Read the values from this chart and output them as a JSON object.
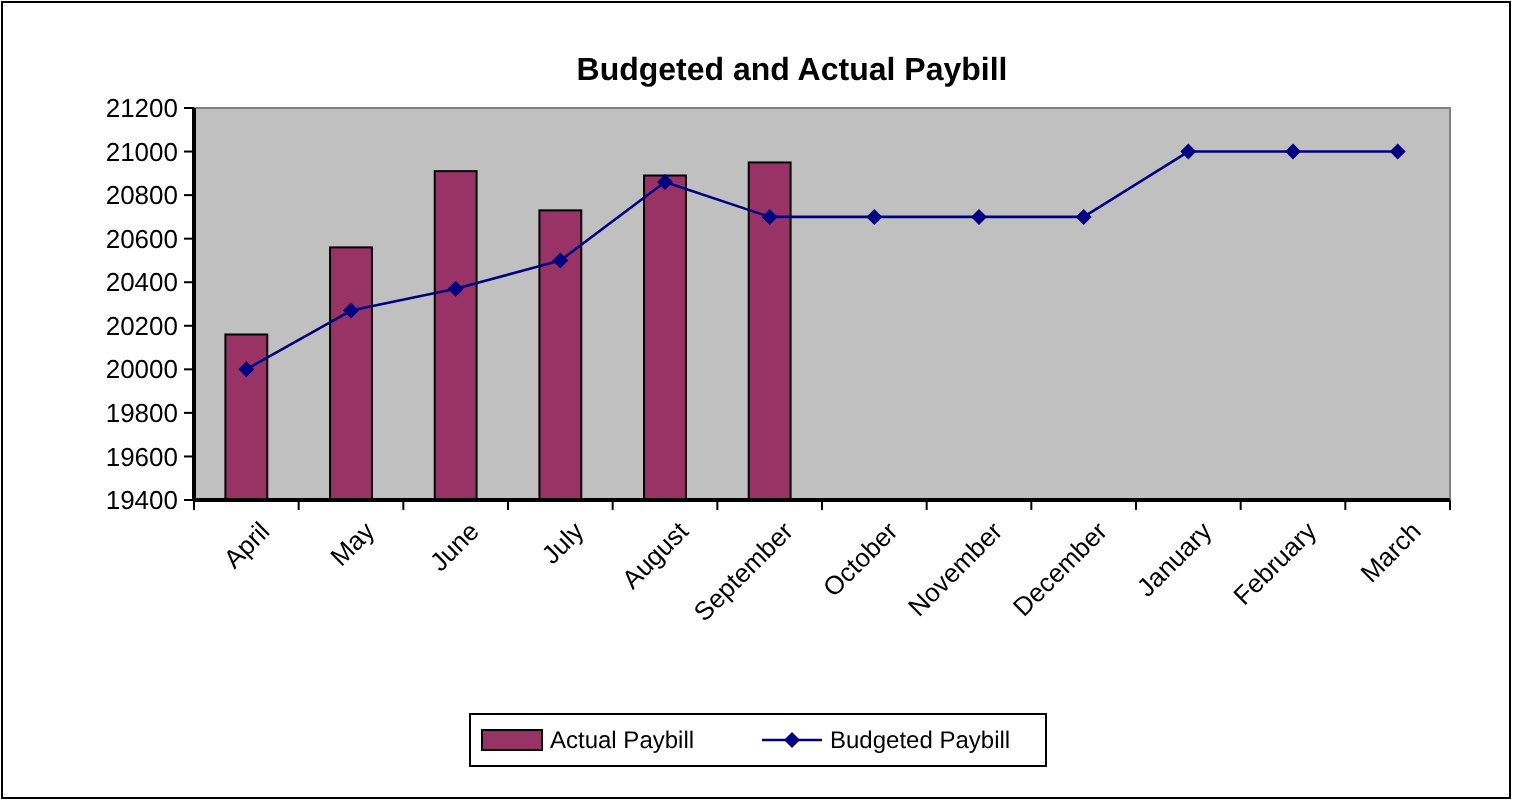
{
  "chart_data": {
    "type": "bar",
    "title": "Budgeted and Actual Paybill",
    "categories": [
      "April",
      "May",
      "June",
      "July",
      "August",
      "September",
      "October",
      "November",
      "December",
      "January",
      "February",
      "March"
    ],
    "series": [
      {
        "name": "Actual Paybill",
        "color": "#993366",
        "values": [
          20160,
          20560,
          20910,
          20730,
          20890,
          20950,
          null,
          null,
          null,
          null,
          null,
          null
        ]
      },
      {
        "name": "Budgeted Paybill",
        "type": "line",
        "color": "#000080",
        "marker": "diamond",
        "values": [
          20000,
          20270,
          20370,
          20500,
          20860,
          20700,
          20700,
          20700,
          20700,
          21000,
          21000,
          21000
        ]
      }
    ],
    "ylim": [
      19400,
      21200
    ],
    "yticks": [
      19400,
      19600,
      19800,
      20000,
      20200,
      20400,
      20600,
      20800,
      21000,
      21200
    ],
    "grid": false,
    "legend": "bottom"
  }
}
